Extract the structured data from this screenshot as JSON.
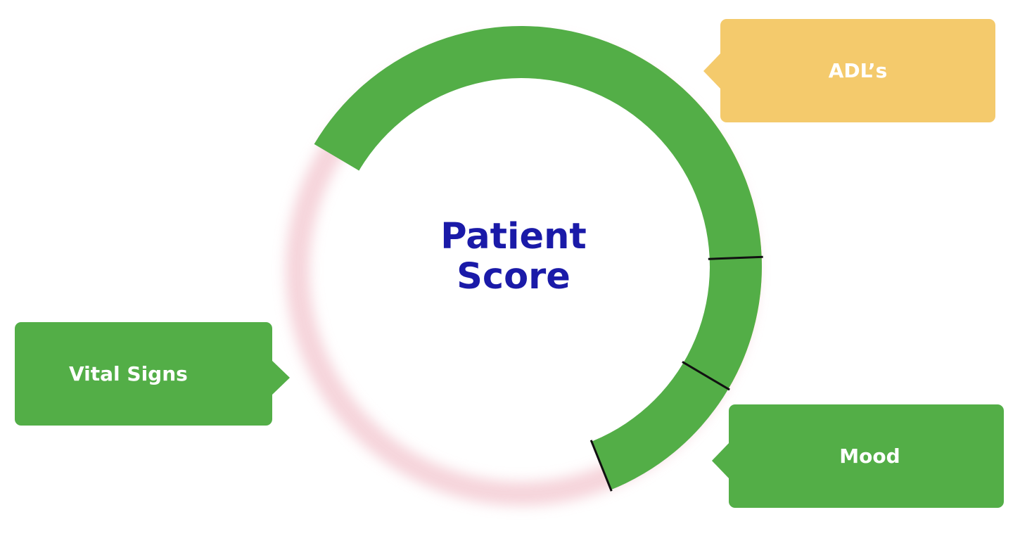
{
  "diagram": {
    "center_title_lines": [
      "Patient",
      "Score"
    ],
    "segments": [
      {
        "name": "ADL’s",
        "color": "#f4ca6c",
        "start_deg": -30.6,
        "end_deg": 68.1
      },
      {
        "name": "Mood",
        "color": "#53ae47",
        "start_deg": -68.1,
        "end_deg": 2.3
      },
      {
        "name": "Vital Signs",
        "color": "#53ae47",
        "start_deg": 2.3,
        "end_deg": 149.4
      }
    ],
    "colors": {
      "adls": "#f4ca6c",
      "green": "#53ae47",
      "title": "#1a1aa8",
      "divider": "#111111",
      "glow": "#f3c6cf"
    }
  },
  "callouts": {
    "adls": {
      "label": "ADL’s",
      "color": "#f4ca6c"
    },
    "vital_signs": {
      "label": "Vital Signs",
      "color": "#53ae47"
    },
    "mood": {
      "label": "Mood",
      "color": "#53ae47"
    }
  }
}
